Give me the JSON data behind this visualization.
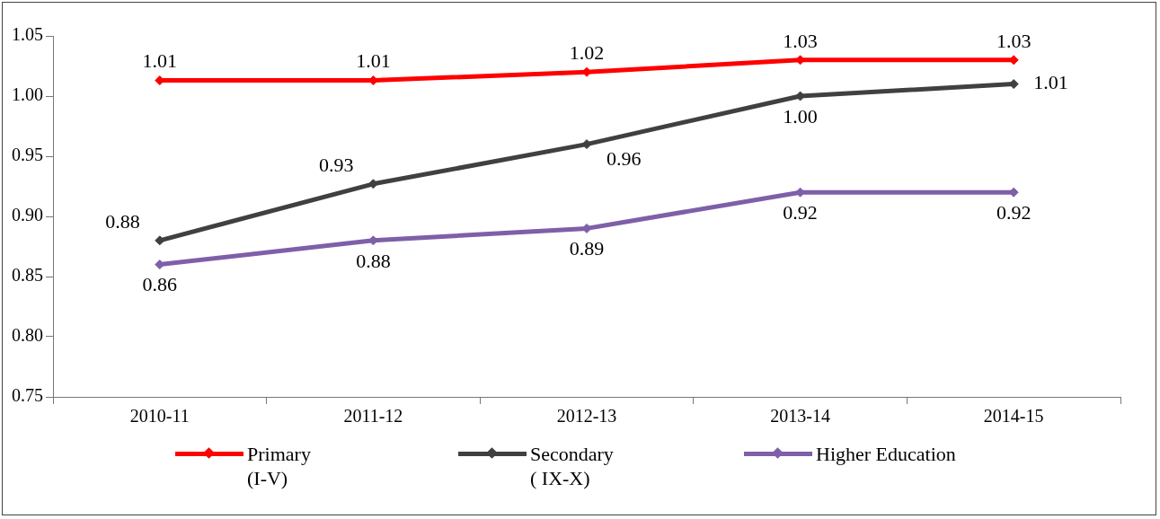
{
  "chart_data": {
    "type": "line",
    "categories": [
      "2010-11",
      "2011-12",
      "2012-13",
      "2013-14",
      "2014-15"
    ],
    "series": [
      {
        "name": "Primary\n(I-V)",
        "color": "#ff0000",
        "values": [
          1.013,
          1.013,
          1.02,
          1.03,
          1.03
        ],
        "value_labels": [
          "1.01",
          "1.01",
          "1.02",
          "1.03",
          "1.03"
        ]
      },
      {
        "name": "Secondary\n( IX-X)",
        "color": "#404040",
        "values": [
          0.88,
          0.927,
          0.96,
          1.0,
          1.01
        ],
        "value_labels": [
          "0.88",
          "0.93",
          "0.96",
          "1.00",
          "1.01"
        ]
      },
      {
        "name": "Higher Education",
        "color": "#7f5fa8",
        "values": [
          0.86,
          0.88,
          0.89,
          0.92,
          0.92
        ],
        "value_labels": [
          "0.86",
          "0.88",
          "0.89",
          "0.92",
          "0.92"
        ]
      }
    ],
    "ylim": [
      0.75,
      1.05
    ],
    "yticks": [
      {
        "value": 0.75,
        "label": "0.75"
      },
      {
        "value": 0.8,
        "label": "0.80"
      },
      {
        "value": 0.85,
        "label": "0.85"
      },
      {
        "value": 0.9,
        "label": "0.90"
      },
      {
        "value": 0.95,
        "label": "0.95"
      },
      {
        "value": 1.0,
        "label": "1.00"
      },
      {
        "value": 1.05,
        "label": "1.05"
      }
    ],
    "grid": false,
    "legend": "bottom",
    "marker": "diamond",
    "line_style": "solid"
  }
}
